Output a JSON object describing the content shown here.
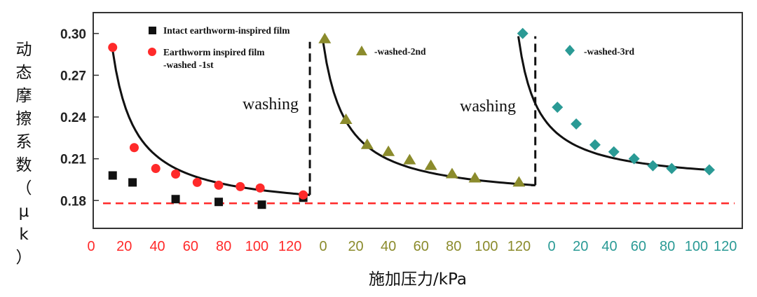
{
  "chart_data": {
    "type": "scatter",
    "xlabel": "施加压力/kPa",
    "ylabel": "动态摩擦系数（μk）",
    "ylim": [
      0.16,
      0.315
    ],
    "yticks": [
      "0.18",
      "0.21",
      "0.24",
      "0.27",
      "0.30"
    ],
    "ytick_values": [
      0.18,
      0.21,
      0.24,
      0.27,
      0.3
    ],
    "x_segments": [
      {
        "color": "#ff2a2a",
        "xlim": [
          0,
          140
        ],
        "ticks": [
          "0",
          "20",
          "40",
          "60",
          "80",
          "100",
          "120"
        ],
        "tick_values": [
          0,
          20,
          40,
          60,
          80,
          100,
          120
        ]
      },
      {
        "color": "#8b8b2c",
        "xlim": [
          0,
          140
        ],
        "ticks": [
          "0",
          "20",
          "40",
          "60",
          "80",
          "100",
          "120"
        ],
        "tick_values": [
          0,
          20,
          40,
          60,
          80,
          100,
          120
        ]
      },
      {
        "color": "#2a9a95",
        "xlim": [
          0,
          125
        ],
        "ticks": [
          "0",
          "20",
          "40",
          "60",
          "80",
          "100",
          "120"
        ],
        "tick_values": [
          0,
          20,
          40,
          60,
          80,
          100,
          120
        ]
      }
    ],
    "reference_line": {
      "y": 0.178,
      "color": "#ff2a2a"
    },
    "series": [
      {
        "name": "Intact earthworm-inspired film",
        "marker": "square",
        "color": "#111111",
        "segment": 0,
        "x": [
          13,
          25,
          51,
          77,
          103,
          128
        ],
        "y": [
          0.198,
          0.193,
          0.181,
          0.179,
          0.177,
          0.182
        ]
      },
      {
        "name": "Earthworm inspired film -washed -1st",
        "name_lines": [
          "Earthworm inspired film",
          "-washed -1st"
        ],
        "marker": "circle",
        "color": "#ff2a2a",
        "segment": 0,
        "x": [
          13,
          26,
          39,
          51,
          64,
          77,
          90,
          102,
          128
        ],
        "y": [
          0.29,
          0.218,
          0.203,
          0.199,
          0.193,
          0.191,
          0.19,
          0.189,
          0.184
        ]
      },
      {
        "name": "-washed-2nd",
        "marker": "triangle",
        "color": "#8b8b2c",
        "segment": 1,
        "x": [
          1,
          14,
          27,
          40,
          53,
          66,
          79,
          93,
          120
        ],
        "y": [
          0.296,
          0.238,
          0.22,
          0.215,
          0.209,
          0.205,
          0.199,
          0.196,
          0.193
        ]
      },
      {
        "name": "-washed-3rd",
        "marker": "diamond",
        "color": "#2a9a95",
        "segment": 2,
        "x": [
          -20,
          4,
          17,
          30,
          43,
          57,
          70,
          83,
          109
        ],
        "y": [
          0.3,
          0.247,
          0.235,
          0.22,
          0.215,
          0.21,
          0.205,
          0.203,
          0.202
        ]
      }
    ],
    "fit_curves": [
      {
        "segment": 0,
        "x_start": 13,
        "x_end": 132,
        "y_start": 0.288,
        "y_end": 0.184
      },
      {
        "segment": 1,
        "x_start": 0,
        "x_end": 130,
        "y_start": 0.294,
        "y_end": 0.191
      },
      {
        "segment": 2,
        "x_start": -23,
        "x_end": 109,
        "y_start": 0.298,
        "y_end": 0.202
      }
    ],
    "washing_drops": [
      {
        "segment": 0,
        "x": 132,
        "y_from": 0.184,
        "y_to": 0.294
      },
      {
        "segment": 1,
        "x": 130,
        "y_from": 0.191,
        "y_to": 0.298
      }
    ],
    "annotations": [
      "washing",
      "washing"
    ],
    "grid": false,
    "legend": "inline"
  }
}
